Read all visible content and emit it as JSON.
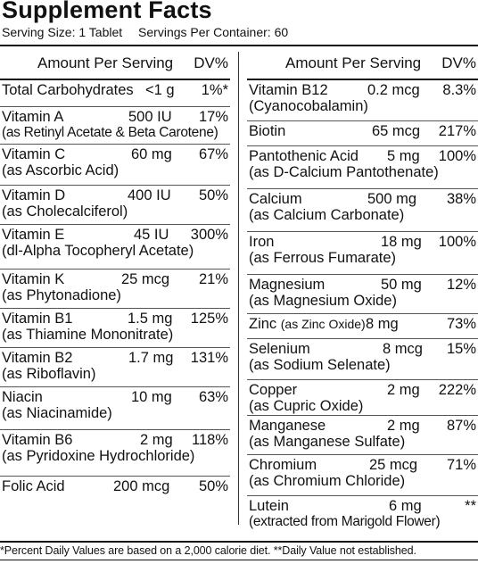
{
  "title": "Supplement Facts",
  "serving_size": "Serving Size: 1 Tablet",
  "servings_per_container": "Servings Per Container: 60",
  "header": {
    "amount_label": "Amount Per Serving",
    "dv_label": "DV%"
  },
  "left": [
    {
      "name": "Total Carbohydrates",
      "amount": "<1 g",
      "dv": "1%*",
      "sub": ""
    },
    {
      "name": "Vitamin A",
      "amount": "500 IU",
      "dv": "17%",
      "sub": "(as Retinyl Acetate & Beta Carotene)"
    },
    {
      "name": "Vitamin C",
      "amount": "60 mg",
      "dv": "67%",
      "sub": "(as Ascorbic Acid)"
    },
    {
      "name": "Vitamin D",
      "amount": "400 IU",
      "dv": "50%",
      "sub": "(as Cholecalciferol)"
    },
    {
      "name": "Vitamin E",
      "amount": "45 IU",
      "dv": "300%",
      "sub": "(dl-Alpha Tocopheryl Acetate)"
    },
    {
      "name": "Vitamin K",
      "amount": "25 mcg",
      "dv": "21%",
      "sub": "(as Phytonadione)"
    },
    {
      "name": "Vitamin B1",
      "amount": "1.5 mg",
      "dv": "125%",
      "sub": "(as Thiamine Mononitrate)"
    },
    {
      "name": "Vitamin B2",
      "amount": "1.7 mg",
      "dv": "131%",
      "sub": "(as Riboflavin)"
    },
    {
      "name": "Niacin",
      "amount": "10 mg",
      "dv": "63%",
      "sub": "(as Niacinamide)"
    },
    {
      "name": "Vitamin B6",
      "amount": "2 mg",
      "dv": "118%",
      "sub": "(as Pyridoxine Hydrochloride)"
    },
    {
      "name": "Folic Acid",
      "amount": "200 mcg",
      "dv": "50%",
      "sub": ""
    }
  ],
  "right": [
    {
      "name": "Vitamin B12",
      "amount": "0.2 mcg",
      "dv": "8.3%",
      "sub": "(Cyanocobalamin)"
    },
    {
      "name": "Biotin",
      "amount": "65 mcg",
      "dv": "217%",
      "sub": ""
    },
    {
      "name": "Pantothenic Acid",
      "amount": "5 mg",
      "dv": "100%",
      "sub": "(as D-Calcium Pantothenate)"
    },
    {
      "name": "Calcium",
      "amount": "500 mg",
      "dv": "38%",
      "sub": "(as Calcium Carbonate)"
    },
    {
      "name": "Iron",
      "amount": "18 mg",
      "dv": "100%",
      "sub": "(as Ferrous Fumarate)"
    },
    {
      "name": "Magnesium",
      "amount": "50 mg",
      "dv": "12%",
      "sub": "(as Magnesium Oxide)"
    },
    {
      "name": "Zinc",
      "inline_source": "(as Zinc Oxide)",
      "amount": "8 mg",
      "dv": "73%",
      "sub": ""
    },
    {
      "name": "Selenium",
      "amount": "8 mcg",
      "dv": "15%",
      "sub": "(as Sodium Selenate)"
    },
    {
      "name": "Copper",
      "amount": "2 mg",
      "dv": "222%",
      "sub": "(as Cupric Oxide)"
    },
    {
      "name": "Manganese",
      "amount": "2 mg",
      "dv": "87%",
      "sub": "(as Manganese Sulfate)"
    },
    {
      "name": "Chromium",
      "amount": "25 mcg",
      "dv": "71%",
      "sub": "(as Chromium Chloride)"
    },
    {
      "name": "Lutein",
      "amount": "6 mg",
      "dv": "**",
      "sub": "(extracted from Marigold Flower)"
    }
  ],
  "footnote": "*Percent Daily Values are based on a 2,000 calorie diet. **Daily Value not established."
}
